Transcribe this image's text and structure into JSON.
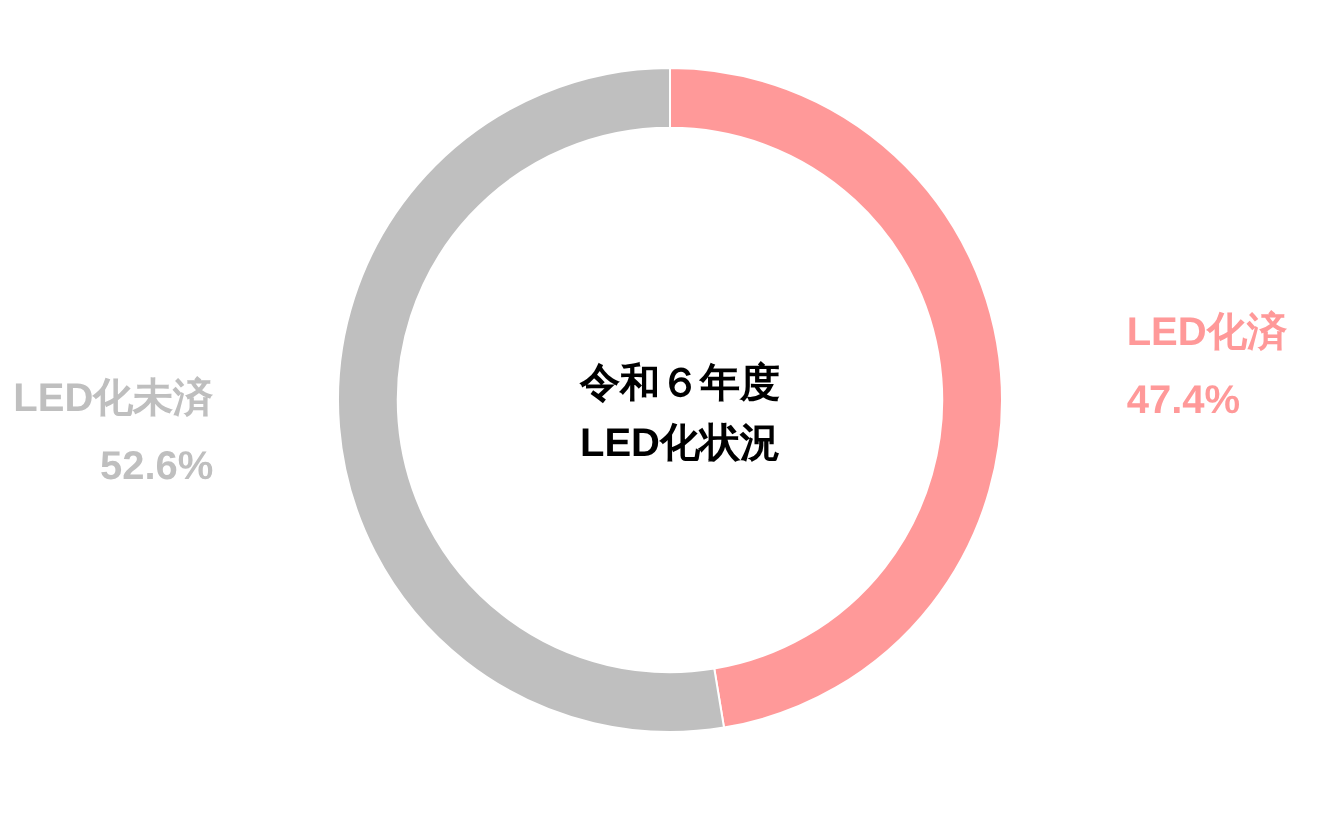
{
  "chart_data": {
    "type": "donut",
    "title": "令和６年度\nLED化状況",
    "categories": [
      "LED化済",
      "LED化未済"
    ],
    "values": [
      47.4,
      52.6
    ],
    "colors": [
      "#ff9999",
      "#bfbfbf"
    ],
    "value_labels": [
      "47.4%",
      "52.6%"
    ],
    "legend": false
  }
}
